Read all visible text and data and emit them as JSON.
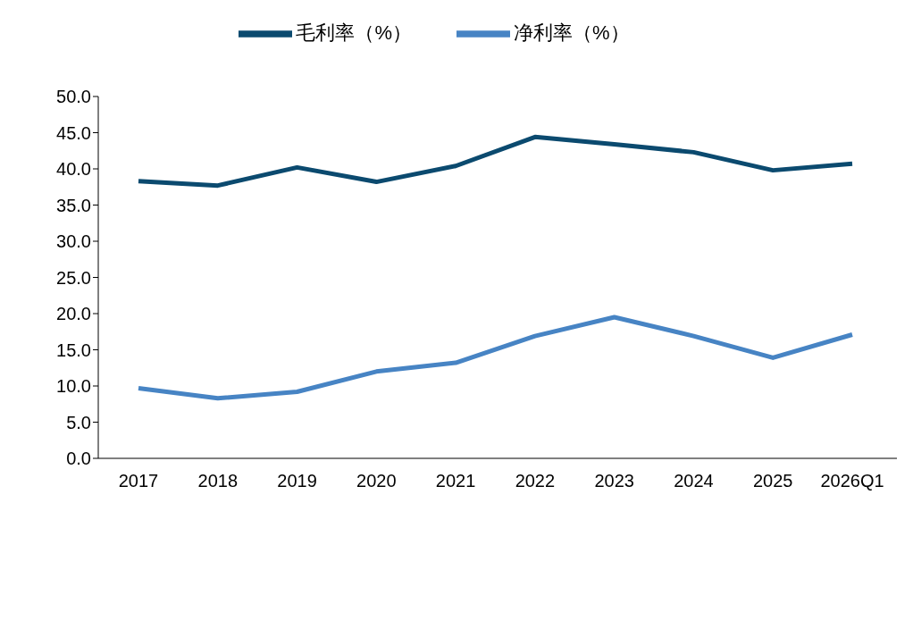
{
  "chart_data": {
    "type": "line",
    "categories": [
      "2017",
      "2018",
      "2019",
      "2020",
      "2021",
      "2022",
      "2023",
      "2024",
      "2025",
      "2026Q1"
    ],
    "series": [
      {
        "name": "毛利率（%）",
        "color": "#0b4a6f",
        "values": [
          38.3,
          37.7,
          40.2,
          38.2,
          40.4,
          44.4,
          43.4,
          42.3,
          39.8,
          40.7
        ]
      },
      {
        "name": "净利率（%）",
        "color": "#4784c4",
        "values": [
          9.7,
          8.3,
          9.2,
          12.0,
          13.2,
          16.9,
          19.5,
          16.9,
          13.9,
          17.1
        ]
      }
    ],
    "ylim": [
      0,
      50
    ],
    "yticks": [
      {
        "value": 0,
        "label": "0.0"
      },
      {
        "value": 5,
        "label": "5.0"
      },
      {
        "value": 10,
        "label": "10.0"
      },
      {
        "value": 15,
        "label": "15.0"
      },
      {
        "value": 20,
        "label": "20.0"
      },
      {
        "value": 25,
        "label": "25.0"
      },
      {
        "value": 30,
        "label": "30.0"
      },
      {
        "value": 35,
        "label": "35.0"
      },
      {
        "value": 40,
        "label": "40.0"
      },
      {
        "value": 45,
        "label": "45.0"
      },
      {
        "value": 50,
        "label": "50.0"
      }
    ],
    "grid": false,
    "legend": "top",
    "marker": "none",
    "line_style": "solid"
  }
}
